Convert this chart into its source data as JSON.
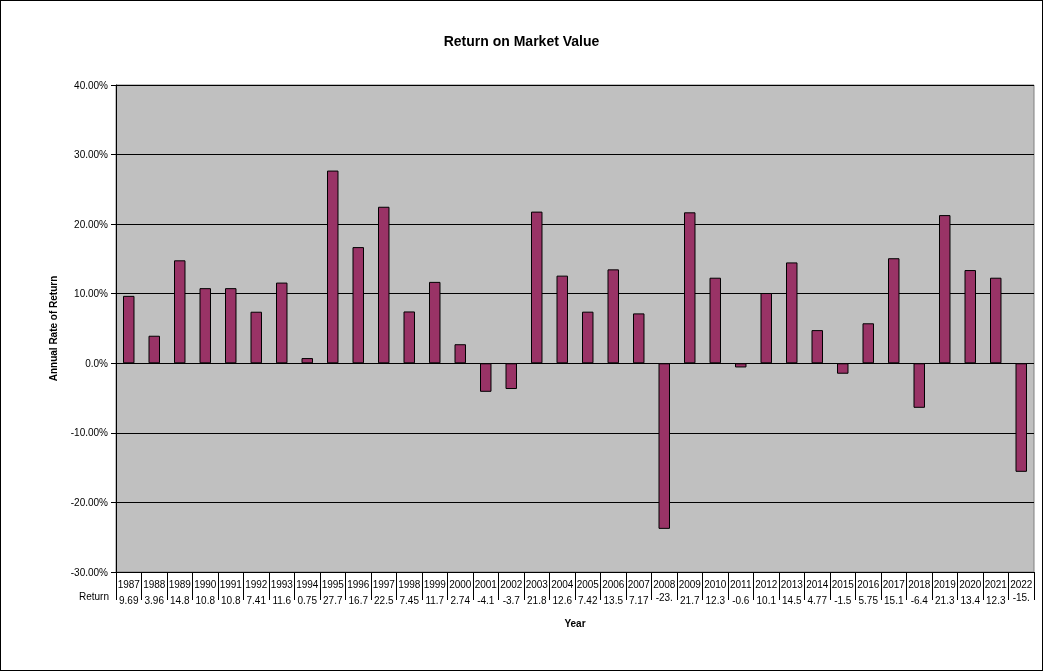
{
  "chart_data": {
    "type": "bar",
    "title": "Return on Market Value",
    "xlabel": "Year",
    "ylabel": "Annual Rate of Return",
    "categories": [
      "1987",
      "1988",
      "1989",
      "1990",
      "1991",
      "1992",
      "1993",
      "1994",
      "1995",
      "1996",
      "1997",
      "1998",
      "1999",
      "2000",
      "2001",
      "2002",
      "2003",
      "2004",
      "2005",
      "2006",
      "2007",
      "2008",
      "2009",
      "2010",
      "2011",
      "2012",
      "2013",
      "2014",
      "2015",
      "2016",
      "2017",
      "2018",
      "2019",
      "2020",
      "2021",
      "2022"
    ],
    "series": [
      {
        "name": "Return",
        "color": "#993366",
        "values": [
          9.69,
          3.96,
          14.8,
          10.8,
          10.8,
          7.41,
          11.6,
          0.75,
          27.7,
          16.7,
          22.5,
          7.45,
          11.7,
          2.74,
          -4.1,
          -3.7,
          21.8,
          12.6,
          7.42,
          13.5,
          7.17,
          -23.8,
          21.7,
          12.3,
          -0.6,
          10.1,
          14.5,
          4.77,
          -1.5,
          5.75,
          15.1,
          -6.4,
          21.3,
          13.4,
          12.3,
          -15.6
        ],
        "value_labels": [
          "9.69",
          "3.96",
          "14.8",
          "10.8",
          "10.8",
          "7.41",
          "11.6",
          "0.75",
          "27.7",
          "16.7",
          "22.5",
          "7.45",
          "11.7",
          "2.74",
          "-4.1",
          "-3.7",
          "21.8",
          "12.6",
          "7.42",
          "13.5",
          "7.17",
          null,
          "21.7",
          "12.3",
          "-0.6",
          "10.1",
          "14.5",
          "4.77",
          "-1.5",
          "5.75",
          "15.1",
          "-6.4",
          "21.3",
          "13.4",
          "12.3",
          null
        ]
      }
    ],
    "annotations": [
      "-23.",
      "-15."
    ],
    "ylim": [
      -30,
      40
    ],
    "yticks": [
      {
        "value": -30,
        "label": "-30.00%"
      },
      {
        "value": -20,
        "label": "-20.00%"
      },
      {
        "value": -10,
        "label": "-10.00%"
      },
      {
        "value": 0,
        "label": "0.0%"
      },
      {
        "value": 10,
        "label": "10.00%"
      },
      {
        "value": 20,
        "label": "20.00%"
      },
      {
        "value": 30,
        "label": "30.00%"
      },
      {
        "value": 40,
        "label": "40.00%"
      }
    ],
    "grid": "y",
    "legend": false
  }
}
